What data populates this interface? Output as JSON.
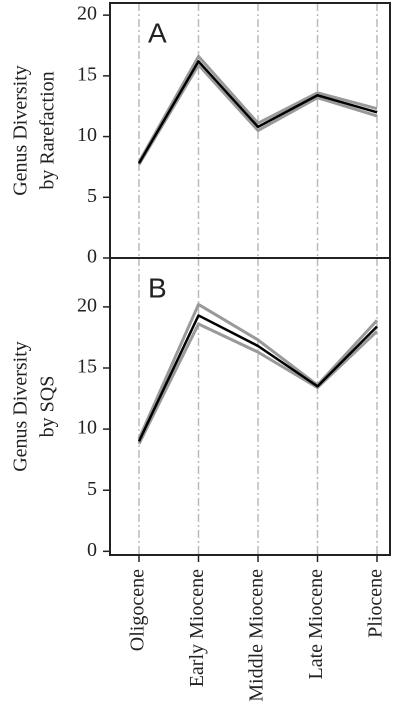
{
  "chart_data": [
    {
      "type": "line",
      "annotation": "A",
      "ylabel": [
        "Genus Diversity",
        "by Rarefaction"
      ],
      "ylim": [
        0,
        21
      ],
      "yticks": [
        0,
        5,
        10,
        15,
        20
      ],
      "grid": true,
      "series": [
        {
          "color": "#999999",
          "values": [
            7.9,
            16.6,
            11.1,
            13.6,
            12.3
          ]
        },
        {
          "color": "#999999",
          "values": [
            7.7,
            15.9,
            10.5,
            13.2,
            11.7
          ]
        },
        {
          "color": "#000000",
          "values": [
            7.8,
            16.2,
            10.8,
            13.4,
            12.0
          ]
        }
      ]
    },
    {
      "type": "line",
      "annotation": "B",
      "ylabel": [
        "Genus Diversity",
        "by SQS"
      ],
      "categories": [
        "Oligocene",
        "Early Miocene",
        "Middle Miocene",
        "Late Miocene",
        "Pliocene"
      ],
      "ylim": [
        -0.3,
        24
      ],
      "yticks": [
        0,
        5,
        10,
        15,
        20
      ],
      "grid": true,
      "series": [
        {
          "color": "#999999",
          "values": [
            9.2,
            20.2,
            17.3,
            13.6,
            18.9
          ]
        },
        {
          "color": "#999999",
          "values": [
            8.8,
            18.6,
            16.3,
            13.4,
            18.0
          ]
        },
        {
          "color": "#000000",
          "values": [
            9.0,
            19.3,
            16.8,
            13.5,
            18.4
          ]
        }
      ]
    }
  ]
}
